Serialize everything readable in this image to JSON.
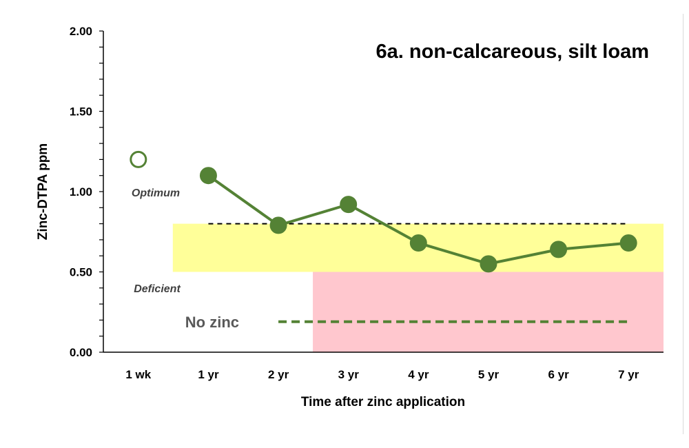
{
  "chart_data": {
    "type": "line",
    "title": "6a. non-calcareous, silt loam",
    "xlabel": "Time after zinc application",
    "ylabel": "Zinc-DTPA ppm",
    "categories": [
      "1 wk",
      "1 yr",
      "2 yr",
      "3 yr",
      "4 yr",
      "5 yr",
      "6 yr",
      "7 yr"
    ],
    "ylim": [
      0,
      2
    ],
    "yticks": [
      "0.00",
      "0.50",
      "1.00",
      "1.50",
      "2.00"
    ],
    "grid": false,
    "series": [
      {
        "values": [
          1.2,
          1.1,
          0.79,
          0.92,
          0.68,
          0.55,
          0.64,
          0.68
        ],
        "color": "#548235",
        "first_point_hollow": true
      },
      {
        "name": "No zinc",
        "values": [
          null,
          null,
          0.19,
          0.19,
          0.19,
          0.19,
          0.19,
          0.19
        ],
        "style": "dashed",
        "color": "#548235"
      }
    ],
    "reference_lines": [
      {
        "y": 0.8,
        "from_category": "1 yr",
        "to_category": "7 yr",
        "style": "dashed",
        "color": "#000000"
      }
    ],
    "bands": [
      {
        "label": "Optimum",
        "y_range": [
          0.5,
          0.8
        ],
        "color": "#ffff99",
        "from_category": "1 wk"
      },
      {
        "label": "Deficient",
        "y_range": [
          0,
          0.5
        ],
        "color": "#ffc7ce",
        "from_category": "2 yr"
      }
    ]
  }
}
